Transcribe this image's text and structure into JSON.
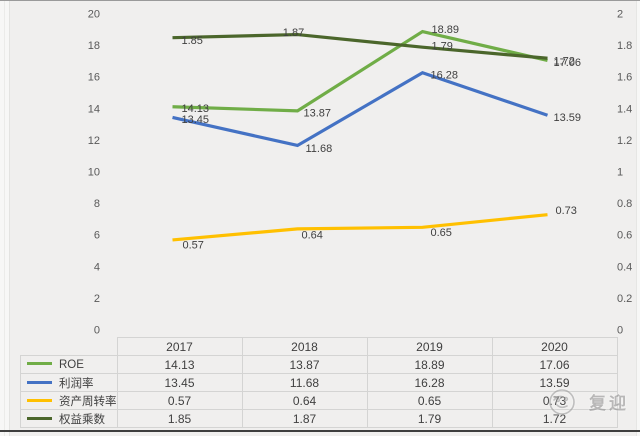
{
  "watermark": {
    "text": "复迎"
  },
  "colors": {
    "background": "#f0efee",
    "axis_text": "#595959",
    "label_text": "#3f3f3f",
    "table_border": "#d4d4d3"
  },
  "chart_data": {
    "type": "line",
    "title": "",
    "categories": [
      "2017",
      "2018",
      "2019",
      "2020"
    ],
    "series": [
      {
        "name": "ROE",
        "axis": "left",
        "color": "#70AD47",
        "values": [
          14.13,
          13.87,
          18.89,
          17.06
        ]
      },
      {
        "name": "利润率",
        "axis": "left",
        "color": "#4472C4",
        "values": [
          13.45,
          11.68,
          16.28,
          13.59
        ]
      },
      {
        "name": "资产周转率",
        "axis": "right",
        "color": "#FFC000",
        "values": [
          0.57,
          0.64,
          0.65,
          0.73
        ]
      },
      {
        "name": "权益乘数",
        "axis": "right",
        "color": "#4B662B",
        "values": [
          1.85,
          1.87,
          1.79,
          1.72
        ]
      }
    ],
    "left_axis": {
      "min": 0,
      "max": 20,
      "step": 2
    },
    "right_axis": {
      "min": 0,
      "max": 2,
      "step": 0.2
    },
    "grid": false,
    "data_labels": true,
    "legend_position": "bottom-table-left-column"
  }
}
